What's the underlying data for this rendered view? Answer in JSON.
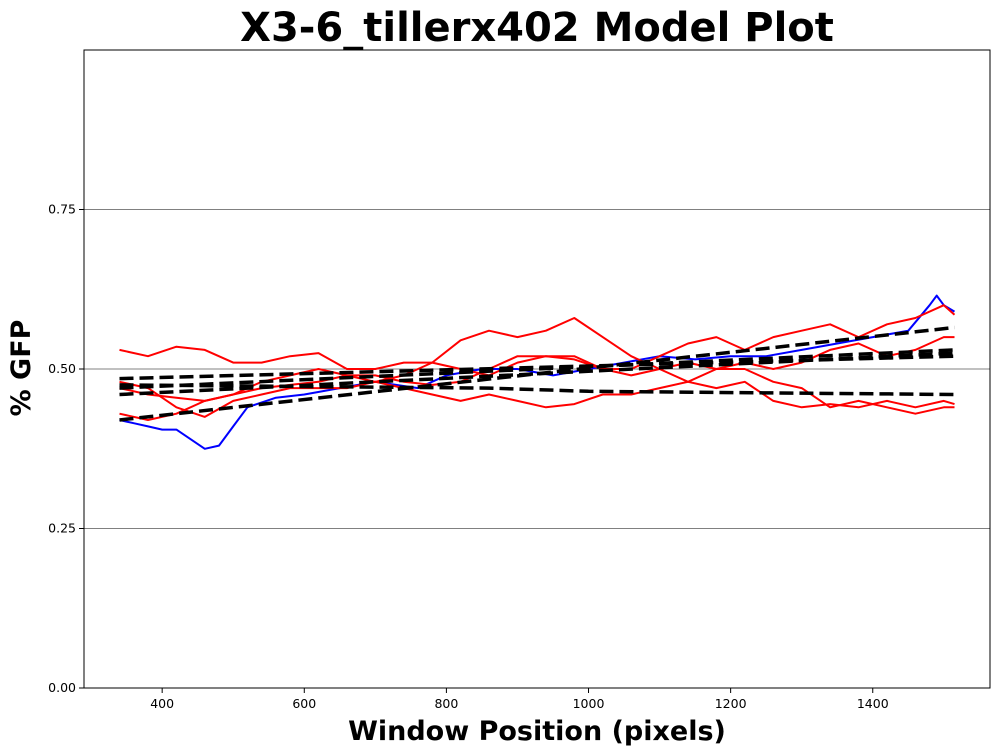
{
  "chart_data": {
    "type": "line",
    "title": "X3-6_tillerx402 Model Plot",
    "xlabel": "Window Position (pixels)",
    "ylabel": "% GFP",
    "xlim": [
      290,
      1565
    ],
    "ylim": [
      0.0,
      1.0
    ],
    "x_ticks": [
      400,
      600,
      800,
      1000,
      1200,
      1400
    ],
    "y_ticks": [
      0.0,
      0.25,
      0.5,
      0.75
    ],
    "x_tick_labels": [
      "400",
      "600",
      "800",
      "1000",
      "1200",
      "1400"
    ],
    "y_tick_labels": [
      "0.00",
      "0.25",
      "0.50",
      "0.75"
    ],
    "grid": "horizontal",
    "colors": {
      "observed_primary": "#ff0000",
      "observed_secondary": "#0000ff",
      "model": "#000000",
      "grid": "#808080"
    },
    "series": [
      {
        "color": "#0000ff",
        "style": "solid",
        "x": [
          340,
          360,
          380,
          400,
          420,
          440,
          460,
          480,
          500,
          520,
          560,
          600,
          650,
          700,
          760,
          800,
          850,
          900,
          950,
          1000,
          1050,
          1100,
          1150,
          1200,
          1250,
          1300,
          1350,
          1400,
          1450,
          1480,
          1490,
          1500,
          1515
        ],
        "y": [
          0.42,
          0.415,
          0.41,
          0.405,
          0.405,
          0.39,
          0.375,
          0.38,
          0.41,
          0.44,
          0.455,
          0.46,
          0.47,
          0.48,
          0.47,
          0.49,
          0.5,
          0.5,
          0.49,
          0.5,
          0.51,
          0.52,
          0.515,
          0.52,
          0.52,
          0.53,
          0.54,
          0.55,
          0.56,
          0.6,
          0.615,
          0.6,
          0.59
        ]
      },
      {
        "color": "#ff0000",
        "style": "solid",
        "x": [
          340,
          380,
          420,
          460,
          500,
          540,
          580,
          620,
          660,
          700,
          740,
          780,
          820,
          860,
          900,
          940,
          980,
          1020,
          1060,
          1100,
          1140,
          1180,
          1220,
          1260,
          1300,
          1340,
          1380,
          1420,
          1460,
          1500,
          1515
        ],
        "y": [
          0.53,
          0.52,
          0.535,
          0.53,
          0.51,
          0.51,
          0.52,
          0.525,
          0.5,
          0.5,
          0.51,
          0.51,
          0.545,
          0.56,
          0.55,
          0.56,
          0.58,
          0.55,
          0.52,
          0.5,
          0.48,
          0.47,
          0.48,
          0.45,
          0.44,
          0.445,
          0.44,
          0.45,
          0.44,
          0.45,
          0.445
        ]
      },
      {
        "color": "#ff0000",
        "style": "solid",
        "x": [
          340,
          380,
          420,
          460,
          500,
          540,
          580,
          620,
          660,
          700,
          740,
          780,
          820,
          860,
          900,
          940,
          980,
          1020,
          1060,
          1100,
          1140,
          1180,
          1220,
          1260,
          1300,
          1340,
          1380,
          1420,
          1460,
          1500,
          1515
        ],
        "y": [
          0.48,
          0.47,
          0.44,
          0.425,
          0.45,
          0.46,
          0.47,
          0.47,
          0.47,
          0.48,
          0.47,
          0.46,
          0.45,
          0.46,
          0.45,
          0.44,
          0.445,
          0.46,
          0.46,
          0.47,
          0.48,
          0.5,
          0.5,
          0.48,
          0.47,
          0.44,
          0.45,
          0.44,
          0.43,
          0.44,
          0.44
        ]
      },
      {
        "color": "#ff0000",
        "style": "solid",
        "x": [
          340,
          380,
          420,
          460,
          500,
          540,
          580,
          620,
          660,
          700,
          740,
          780,
          820,
          860,
          900,
          940,
          980,
          1020,
          1060,
          1100,
          1140,
          1180,
          1220,
          1260,
          1300,
          1340,
          1380,
          1420,
          1460,
          1500,
          1515
        ],
        "y": [
          0.43,
          0.42,
          0.43,
          0.45,
          0.46,
          0.47,
          0.475,
          0.48,
          0.49,
          0.49,
          0.48,
          0.475,
          0.48,
          0.5,
          0.52,
          0.52,
          0.52,
          0.5,
          0.5,
          0.52,
          0.54,
          0.55,
          0.53,
          0.55,
          0.56,
          0.57,
          0.55,
          0.57,
          0.58,
          0.6,
          0.585
        ]
      },
      {
        "color": "#ff0000",
        "style": "solid",
        "x": [
          340,
          380,
          420,
          460,
          500,
          540,
          580,
          620,
          660,
          700,
          740,
          780,
          820,
          860,
          900,
          940,
          980,
          1020,
          1060,
          1100,
          1140,
          1180,
          1220,
          1260,
          1300,
          1340,
          1380,
          1420,
          1460,
          1500,
          1515
        ],
        "y": [
          0.47,
          0.46,
          0.455,
          0.45,
          0.46,
          0.48,
          0.49,
          0.5,
          0.49,
          0.48,
          0.49,
          0.51,
          0.5,
          0.49,
          0.51,
          0.52,
          0.515,
          0.5,
          0.49,
          0.5,
          0.51,
          0.5,
          0.51,
          0.5,
          0.51,
          0.53,
          0.54,
          0.52,
          0.53,
          0.55,
          0.55
        ]
      },
      {
        "color": "#000000",
        "style": "dashed",
        "x": [
          340,
          1515
        ],
        "y": [
          0.42,
          0.565
        ]
      },
      {
        "color": "#000000",
        "style": "dashed",
        "x": [
          340,
          1515
        ],
        "y": [
          0.46,
          0.525
        ]
      },
      {
        "color": "#000000",
        "style": "dashed",
        "x": [
          340,
          1515
        ],
        "y": [
          0.47,
          0.53
        ]
      },
      {
        "color": "#000000",
        "style": "dashed",
        "x": [
          340,
          1515
        ],
        "y": [
          0.485,
          0.52
        ]
      },
      {
        "color": "#000000",
        "style": "dashed",
        "x": [
          340,
          860,
          1000,
          1515
        ],
        "y": [
          0.475,
          0.47,
          0.465,
          0.46
        ]
      }
    ]
  }
}
